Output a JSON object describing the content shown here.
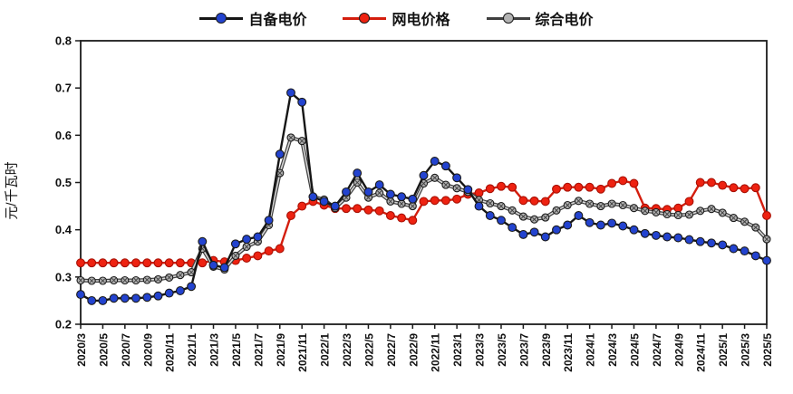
{
  "chart_data": {
    "type": "line",
    "title": "",
    "ylabel": "元/千瓦时",
    "ylim": [
      0.2,
      0.8
    ],
    "ytick_step": 0.1,
    "grid": false,
    "legend_position": "top-center",
    "xtick_every": 2,
    "x": [
      "2020/3",
      "2020/4",
      "2020/5",
      "2020/6",
      "2020/7",
      "2020/8",
      "2020/9",
      "2020/10",
      "2020/11",
      "2020/12",
      "2021/1",
      "2021/2",
      "2021/3",
      "2021/4",
      "2021/5",
      "2021/6",
      "2021/7",
      "2021/8",
      "2021/9",
      "2021/10",
      "2021/11",
      "2021/12",
      "2022/1",
      "2022/2",
      "2022/3",
      "2022/4",
      "2022/5",
      "2022/6",
      "2022/7",
      "2022/8",
      "2022/9",
      "2022/10",
      "2022/11",
      "2022/12",
      "2023/1",
      "2023/2",
      "2023/3",
      "2023/4",
      "2023/5",
      "2023/6",
      "2023/7",
      "2023/8",
      "2023/9",
      "2023/10",
      "2023/11",
      "2023/12",
      "2024/1",
      "2024/2",
      "2024/3",
      "2024/4",
      "2024/5",
      "2024/6",
      "2024/7",
      "2024/8",
      "2024/9",
      "2024/10",
      "2024/11",
      "2024/12",
      "2025/1",
      "2025/2",
      "2025/3",
      "2025/4",
      "2025/5"
    ],
    "series": [
      {
        "name": "自备电价",
        "color": "#2343cf",
        "line_color": "#161616",
        "values": [
          0.263,
          0.25,
          0.25,
          0.255,
          0.255,
          0.255,
          0.257,
          0.26,
          0.266,
          0.271,
          0.28,
          0.375,
          0.325,
          0.32,
          0.37,
          0.38,
          0.385,
          0.42,
          0.56,
          0.69,
          0.67,
          0.47,
          0.46,
          0.45,
          0.48,
          0.52,
          0.48,
          0.495,
          0.475,
          0.47,
          0.465,
          0.515,
          0.545,
          0.535,
          0.51,
          0.485,
          0.45,
          0.43,
          0.42,
          0.405,
          0.39,
          0.395,
          0.385,
          0.4,
          0.41,
          0.43,
          0.415,
          0.41,
          0.414,
          0.408,
          0.4,
          0.392,
          0.388,
          0.385,
          0.383,
          0.379,
          0.375,
          0.372,
          0.368,
          0.36,
          0.355,
          0.345,
          0.335
        ]
      },
      {
        "name": "网电价格",
        "color": "#ee2211",
        "line_color": "#d41e0e",
        "values": [
          0.33,
          0.33,
          0.33,
          0.33,
          0.33,
          0.33,
          0.33,
          0.33,
          0.33,
          0.33,
          0.33,
          0.33,
          0.335,
          0.332,
          0.335,
          0.34,
          0.345,
          0.355,
          0.36,
          0.43,
          0.45,
          0.46,
          0.452,
          0.445,
          0.445,
          0.445,
          0.442,
          0.44,
          0.43,
          0.425,
          0.42,
          0.46,
          0.462,
          0.462,
          0.465,
          0.475,
          0.478,
          0.487,
          0.492,
          0.49,
          0.462,
          0.461,
          0.46,
          0.486,
          0.49,
          0.49,
          0.49,
          0.486,
          0.498,
          0.504,
          0.498,
          0.446,
          0.445,
          0.443,
          0.446,
          0.46,
          0.5,
          0.5,
          0.494,
          0.489,
          0.487,
          0.489,
          0.43
        ]
      },
      {
        "name": "综合电价",
        "color": "#b3b3b3",
        "line_color": "#3f3f3f",
        "values": [
          0.293,
          0.292,
          0.292,
          0.293,
          0.293,
          0.293,
          0.294,
          0.295,
          0.299,
          0.304,
          0.31,
          0.36,
          0.322,
          0.316,
          0.345,
          0.364,
          0.375,
          0.41,
          0.52,
          0.595,
          0.588,
          0.47,
          0.464,
          0.446,
          0.468,
          0.5,
          0.468,
          0.478,
          0.46,
          0.455,
          0.45,
          0.498,
          0.51,
          0.495,
          0.488,
          0.48,
          0.463,
          0.456,
          0.45,
          0.441,
          0.428,
          0.422,
          0.426,
          0.441,
          0.452,
          0.461,
          0.455,
          0.45,
          0.455,
          0.452,
          0.446,
          0.44,
          0.437,
          0.433,
          0.431,
          0.432,
          0.44,
          0.444,
          0.436,
          0.425,
          0.417,
          0.405,
          0.38
        ]
      }
    ]
  }
}
